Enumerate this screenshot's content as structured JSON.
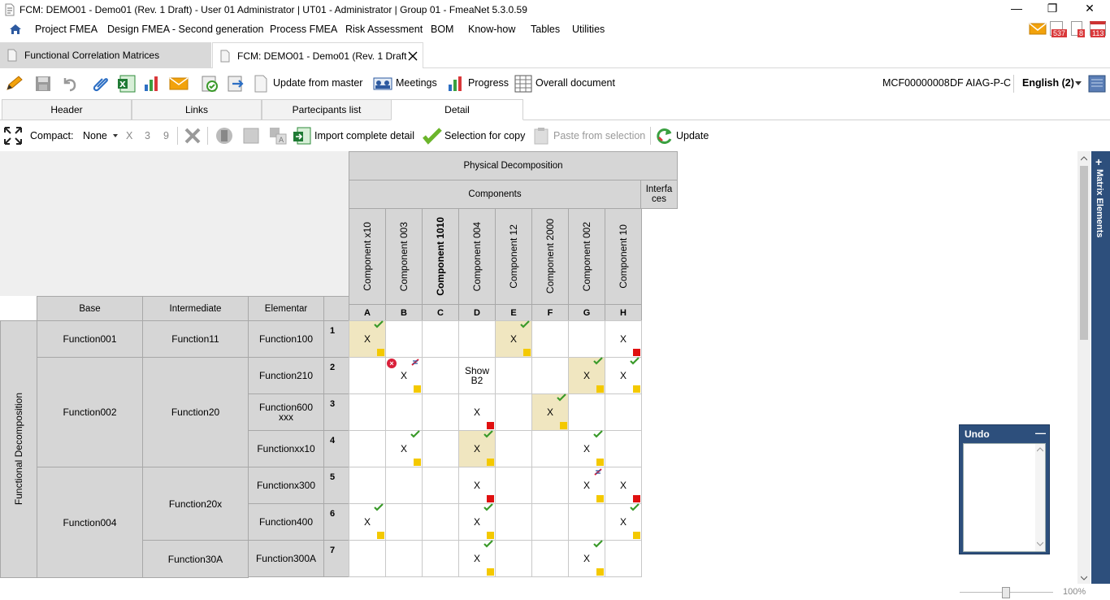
{
  "window": {
    "title": "FCM: DEMO01 - Demo01 (Rev. 1 Draft) - User 01 Administrator | UT01 - Administrator | Group 01 - FmeaNet 5.3.0.59",
    "minimize": "—",
    "restore": "❐",
    "close": "✕"
  },
  "menu": {
    "items": [
      "Project FMEA",
      "Design FMEA - Second generation",
      "Process FMEA",
      "Risk Assessment",
      "BOM",
      "Know-how",
      "Tables",
      "Utilities"
    ],
    "badges": [
      "537",
      "8",
      "113"
    ]
  },
  "doc_tabs": [
    {
      "label": "Functional Correlation Matrices"
    },
    {
      "label": "FCM: DEMO01 - Demo01 (Rev. 1 Draft"
    }
  ],
  "toolbar": {
    "update_from_master": "Update from master",
    "meetings": "Meetings",
    "progress": "Progress",
    "overall_document": "Overall document",
    "doc_code": "MCF00000008",
    "standard": "DF AIAG-P-C",
    "language": "English (2)"
  },
  "sub_tabs": [
    "Header",
    "Links",
    "Partecipants list",
    "Detail"
  ],
  "detail_toolbar": {
    "compact_label": "Compact:",
    "compact_value": "None",
    "compact_x": "X",
    "compact_3": "3",
    "compact_9": "9",
    "import_complete_detail": "Import complete detail",
    "selection_for_copy": "Selection for copy",
    "paste_from_selection": "Paste from selection",
    "update": "Update"
  },
  "matrix": {
    "physical_decomposition": "Physical Decomposition",
    "components_group": "Components",
    "interfaces_group": "Interfa ces",
    "components": [
      {
        "name": "Component x10",
        "letter": "A",
        "bold": false
      },
      {
        "name": "Component 003",
        "letter": "B",
        "bold": false
      },
      {
        "name": "Component 1010",
        "letter": "C",
        "bold": true
      },
      {
        "name": "Component 004",
        "letter": "D",
        "bold": false
      },
      {
        "name": "Component 12",
        "letter": "E",
        "bold": false
      },
      {
        "name": "Component 2000",
        "letter": "F",
        "bold": false
      },
      {
        "name": "Component 002",
        "letter": "G",
        "bold": false
      },
      {
        "name": "Component 10",
        "letter": "H",
        "bold": false
      }
    ],
    "level_headers": [
      "Base",
      "Intermediate",
      "Elementar"
    ],
    "functional_decomposition": "Functional Decomposition",
    "base_functions": [
      "Function001",
      "Function002",
      "Function004"
    ],
    "intermediate_functions": [
      "Function11",
      "Function20",
      "Function20x",
      "Function30A"
    ],
    "elementar_functions": [
      "Function100",
      "Function210",
      "Function600 xxx",
      "Functionxx10",
      "Functionx300",
      "Function400",
      "Function300A"
    ],
    "row_numbers": [
      "1",
      "2",
      "3",
      "4",
      "5",
      "6",
      "7"
    ],
    "cells": [
      [
        "X",
        "",
        "",
        "",
        "X",
        "",
        "",
        "X"
      ],
      [
        "",
        "X",
        "",
        "Show B2",
        "",
        "",
        "X",
        "X"
      ],
      [
        "",
        "",
        "",
        "X",
        "",
        "X",
        "",
        ""
      ],
      [
        "",
        "X",
        "",
        "X",
        "",
        "",
        "X",
        ""
      ],
      [
        "",
        "",
        "",
        "X",
        "",
        "",
        "X",
        "X"
      ],
      [
        "X",
        "",
        "",
        "X",
        "",
        "",
        "",
        "X"
      ],
      [
        "",
        "",
        "",
        "X",
        "",
        "",
        "X",
        ""
      ]
    ]
  },
  "right_panel": {
    "label": "Matrix Elements"
  },
  "undo_panel": {
    "title": "Undo",
    "collapse": "—"
  },
  "status": {
    "zoom": "100%"
  },
  "colors": {
    "panel_blue": "#2d4f7c",
    "highlight": "#f0e6c0",
    "yellow_marker": "#f4c900",
    "red_marker": "#e01010",
    "check_green": "#3a9a2a",
    "header_gray": "#d6d6d6"
  }
}
